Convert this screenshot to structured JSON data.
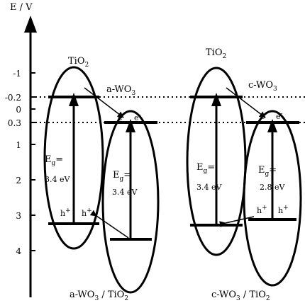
{
  "axis": {
    "title": "E / V",
    "ticks": [
      "-1",
      "-0.2",
      "0",
      "0.3",
      "1",
      "2",
      "3",
      "4"
    ]
  },
  "left": {
    "tio2": {
      "main": "TiO",
      "sub": "2"
    },
    "wo3": {
      "main": "a-WO",
      "sub": "3"
    },
    "eg_tio2": {
      "main": "E",
      "sub": "g",
      "tail": "=",
      "value": "3.4 eV"
    },
    "eg_wo3": {
      "main": "E",
      "sub": "g",
      "tail": "=",
      "value": "3.4 eV"
    },
    "electron": "e",
    "electron_sup": "-",
    "hole": "h",
    "hole_sup": "+",
    "caption": {
      "a": "a-WO",
      "a_sub": "3",
      "b": " / TiO",
      "b_sub": "2"
    }
  },
  "right": {
    "tio2": {
      "main": "TiO",
      "sub": "2"
    },
    "wo3": {
      "main": "c-WO",
      "sub": "3"
    },
    "eg_tio2": {
      "main": "E",
      "sub": "g",
      "tail": "=",
      "value": "3.4 eV"
    },
    "eg_wo3": {
      "main": "E",
      "sub": "g",
      "tail": "=",
      "value": "2.8 eV"
    },
    "electron": "e",
    "electron_sup": "-",
    "hole": "h",
    "hole_sup": "+",
    "caption": {
      "a": "c-WO",
      "a_sub": "3",
      "b": " / TiO",
      "b_sub": "2"
    }
  }
}
